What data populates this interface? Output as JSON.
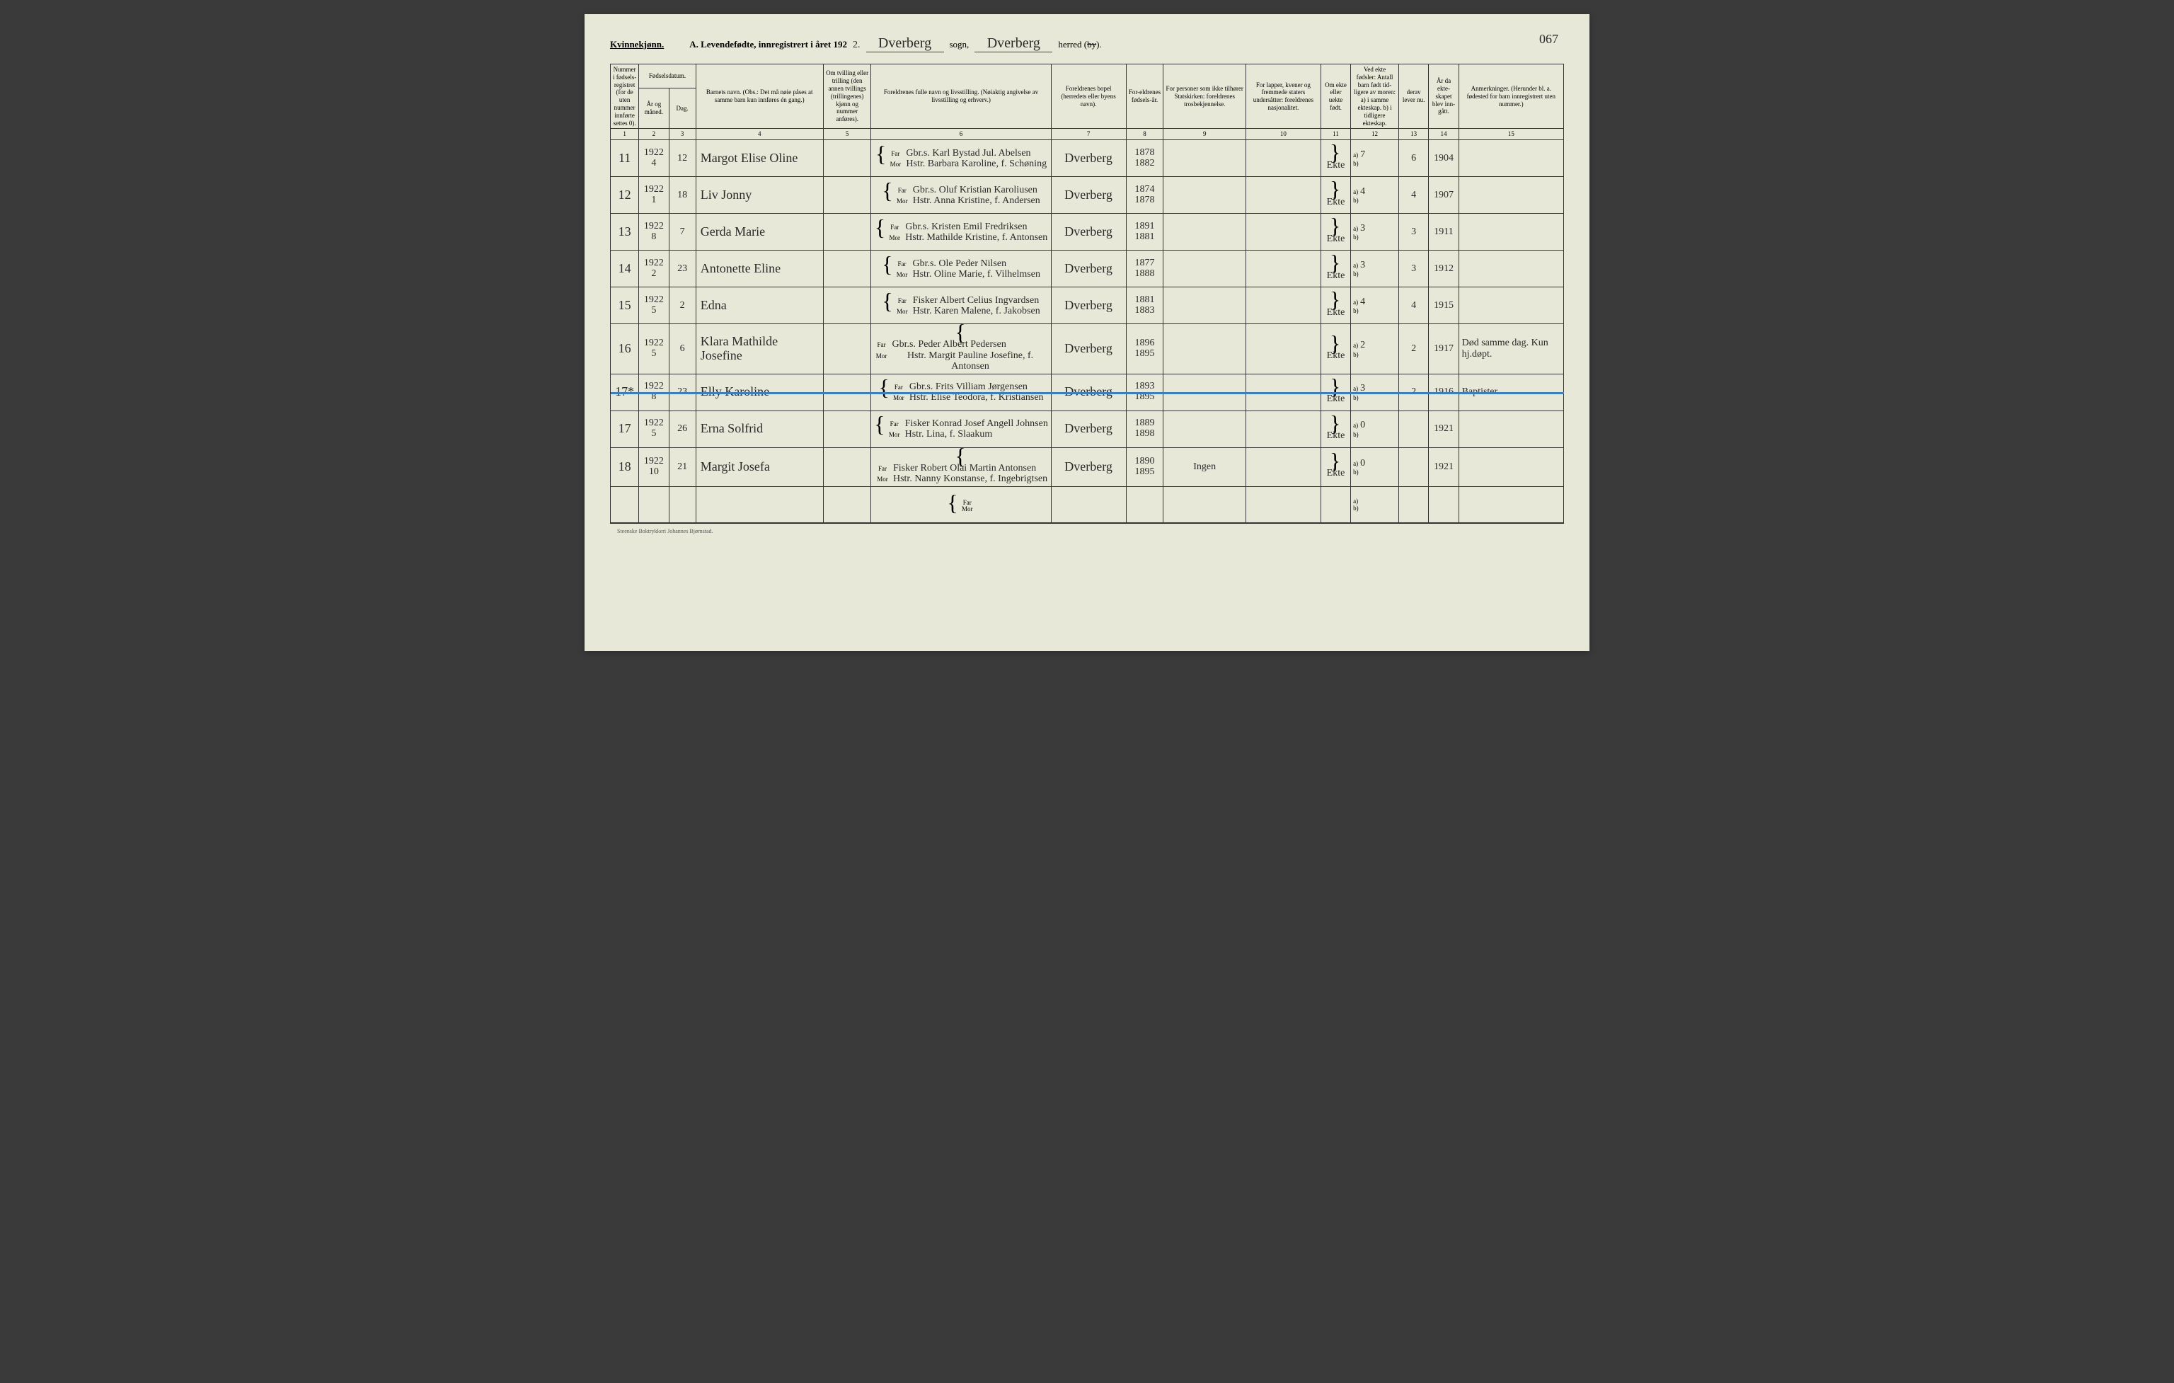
{
  "page_number": "067",
  "gender_label": "Kvinnekjønn.",
  "title_prefix": "A. Levendefødte, innregistrert i året 192",
  "title_year_suffix": "2.",
  "parish_hw": "Dverberg",
  "parish_label": "sogn,",
  "district_hw": "Dverberg",
  "district_label": "herred (by).",
  "struck_word": "by",
  "printer": "Steenske Boktrykkeri Johannes Bjørnstad.",
  "headers": {
    "c1": "Nummer i fødsels-registret (for de uten nummer innførte settes 0).",
    "c23_top": "Fødselsdatum.",
    "c2": "År og måned.",
    "c3": "Dag.",
    "c4": "Barnets navn.\n(Obs.: Det må nøie påses at samme barn kun innføres én gang.)",
    "c5": "Om tvilling eller trilling (den annen tvillings (trillingenes) kjønn og nummer anføres).",
    "c6": "Foreldrenes fulle navn og livsstilling.\n(Nøiaktig angivelse av livsstilling og erhverv.)",
    "c7": "Foreldrenes bopel (herredets eller byens navn).",
    "c8": "For-eldrenes fødsels-år.",
    "c9": "For personer som ikke tilhører Statskirken: foreldrenes trosbekjennelse.",
    "c10": "For lapper, kvener og fremmede staters undersåtter: foreldrenes nasjonalitet.",
    "c11": "Om ekte eller uekte født.",
    "c12": "Ved ekte fødsler: Antall barn født tid-ligere av moren:\na) i samme ekteskap.\nb) i tidligere ekteskap.",
    "c13": "derav lever nu.",
    "c14": "År da ekte-skapet blev inn-gått.",
    "c15": "Anmerkninger.\n(Herunder bl. a. fødested for barn innregistrert uten nummer.)",
    "labels": {
      "far": "Far",
      "mor": "Mor",
      "a": "a)",
      "b": "b)"
    }
  },
  "colnums": [
    "1",
    "2",
    "3",
    "4",
    "5",
    "6",
    "7",
    "8",
    "9",
    "10",
    "11",
    "12",
    "13",
    "14",
    "15"
  ],
  "rows": [
    {
      "num": "11",
      "year": "1922",
      "month": "4",
      "day": "12",
      "child": "Margot Elise Oline",
      "far": "Gbr.s. Karl Bystad Jul. Abelsen",
      "mor": "Hstr. Barbara Karoline, f. Schøning",
      "bopel": "Dverberg",
      "far_year": "1878",
      "mor_year": "1882",
      "rel": "",
      "nat": "",
      "ekte": "Ekte",
      "a": "7",
      "b": "",
      "lever": "6",
      "marr": "1904",
      "anm": ""
    },
    {
      "num": "12",
      "year": "1922",
      "month": "1",
      "day": "18",
      "child": "Liv Jonny",
      "far": "Gbr.s. Oluf Kristian Karoliusen",
      "mor": "Hstr. Anna Kristine, f. Andersen",
      "bopel": "Dverberg",
      "far_year": "1874",
      "mor_year": "1878",
      "rel": "",
      "nat": "",
      "ekte": "Ekte",
      "a": "4",
      "b": "",
      "lever": "4",
      "marr": "1907",
      "anm": ""
    },
    {
      "num": "13",
      "year": "1922",
      "month": "8",
      "day": "7",
      "child": "Gerda Marie",
      "far": "Gbr.s. Kristen Emil Fredriksen",
      "mor": "Hstr. Mathilde Kristine, f. Antonsen",
      "bopel": "Dverberg",
      "far_year": "1891",
      "mor_year": "1881",
      "rel": "",
      "nat": "",
      "ekte": "Ekte",
      "a": "3",
      "b": "",
      "lever": "3",
      "marr": "1911",
      "anm": ""
    },
    {
      "num": "14",
      "year": "1922",
      "month": "2",
      "day": "23",
      "child": "Antonette Eline",
      "far": "Gbr.s. Ole Peder Nilsen",
      "mor": "Hstr. Oline Marie, f. Vilhelmsen",
      "bopel": "Dverberg",
      "far_year": "1877",
      "mor_year": "1888",
      "rel": "",
      "nat": "",
      "ekte": "Ekte",
      "a": "3",
      "b": "",
      "lever": "3",
      "marr": "1912",
      "anm": ""
    },
    {
      "num": "15",
      "year": "1922",
      "month": "5",
      "day": "2",
      "child": "Edna",
      "far": "Fisker Albert Celius Ingvardsen",
      "mor": "Hstr. Karen Malene, f. Jakobsen",
      "bopel": "Dverberg",
      "far_year": "1881",
      "mor_year": "1883",
      "rel": "",
      "nat": "",
      "ekte": "Ekte",
      "a": "4",
      "b": "",
      "lever": "4",
      "marr": "1915",
      "anm": ""
    },
    {
      "num": "16",
      "year": "1922",
      "month": "5",
      "day": "6",
      "child": "Klara Mathilde Josefine",
      "far": "Gbr.s. Peder Albert Pedersen",
      "mor": "Hstr. Margit Pauline Josefine, f. Antonsen",
      "bopel": "Dverberg",
      "far_year": "1896",
      "mor_year": "1895",
      "rel": "",
      "nat": "",
      "ekte": "Ekte",
      "a": "2",
      "b": "",
      "lever": "2",
      "marr": "1917",
      "anm": "Død samme dag. Kun hj.døpt."
    },
    {
      "num": "17*",
      "year": "1922",
      "month": "8",
      "day": "23",
      "child": "Elly Karoline",
      "far": "Gbr.s. Frits Villiam Jørgensen",
      "mor": "Hstr. Elise Teodora, f. Kristiansen",
      "bopel": "Dverberg",
      "far_year": "1893",
      "mor_year": "1895",
      "rel": "",
      "nat": "",
      "ekte": "Ekte",
      "a": "3",
      "b": "",
      "lever": "2",
      "marr": "1916",
      "anm": "Baptister",
      "crossed": true
    },
    {
      "num": "17",
      "year": "1922",
      "month": "5",
      "day": "26",
      "child": "Erna Solfrid",
      "far": "Fisker Konrad Josef Angell Johnsen",
      "mor": "Hstr. Lina, f. Slaakum",
      "bopel": "Dverberg",
      "far_year": "1889",
      "mor_year": "1898",
      "rel": "",
      "nat": "",
      "ekte": "Ekte",
      "a": "0",
      "b": "",
      "lever": "",
      "marr": "1921",
      "anm": ""
    },
    {
      "num": "18",
      "year": "1922",
      "month": "10",
      "day": "21",
      "child": "Margit Josefa",
      "far": "Fisker Robert Olai Martin Antonsen",
      "mor": "Hstr. Nanny Konstanse, f. Ingebrigtsen",
      "bopel": "Dverberg",
      "far_year": "1890",
      "mor_year": "1895",
      "rel": "Ingen",
      "nat": "",
      "ekte": "Ekte",
      "a": "0",
      "b": "",
      "lever": "",
      "marr": "1921",
      "anm": ""
    }
  ],
  "empty_row": {
    "far": "Far",
    "mor": "Mor",
    "a": "a)",
    "b": "b)"
  }
}
